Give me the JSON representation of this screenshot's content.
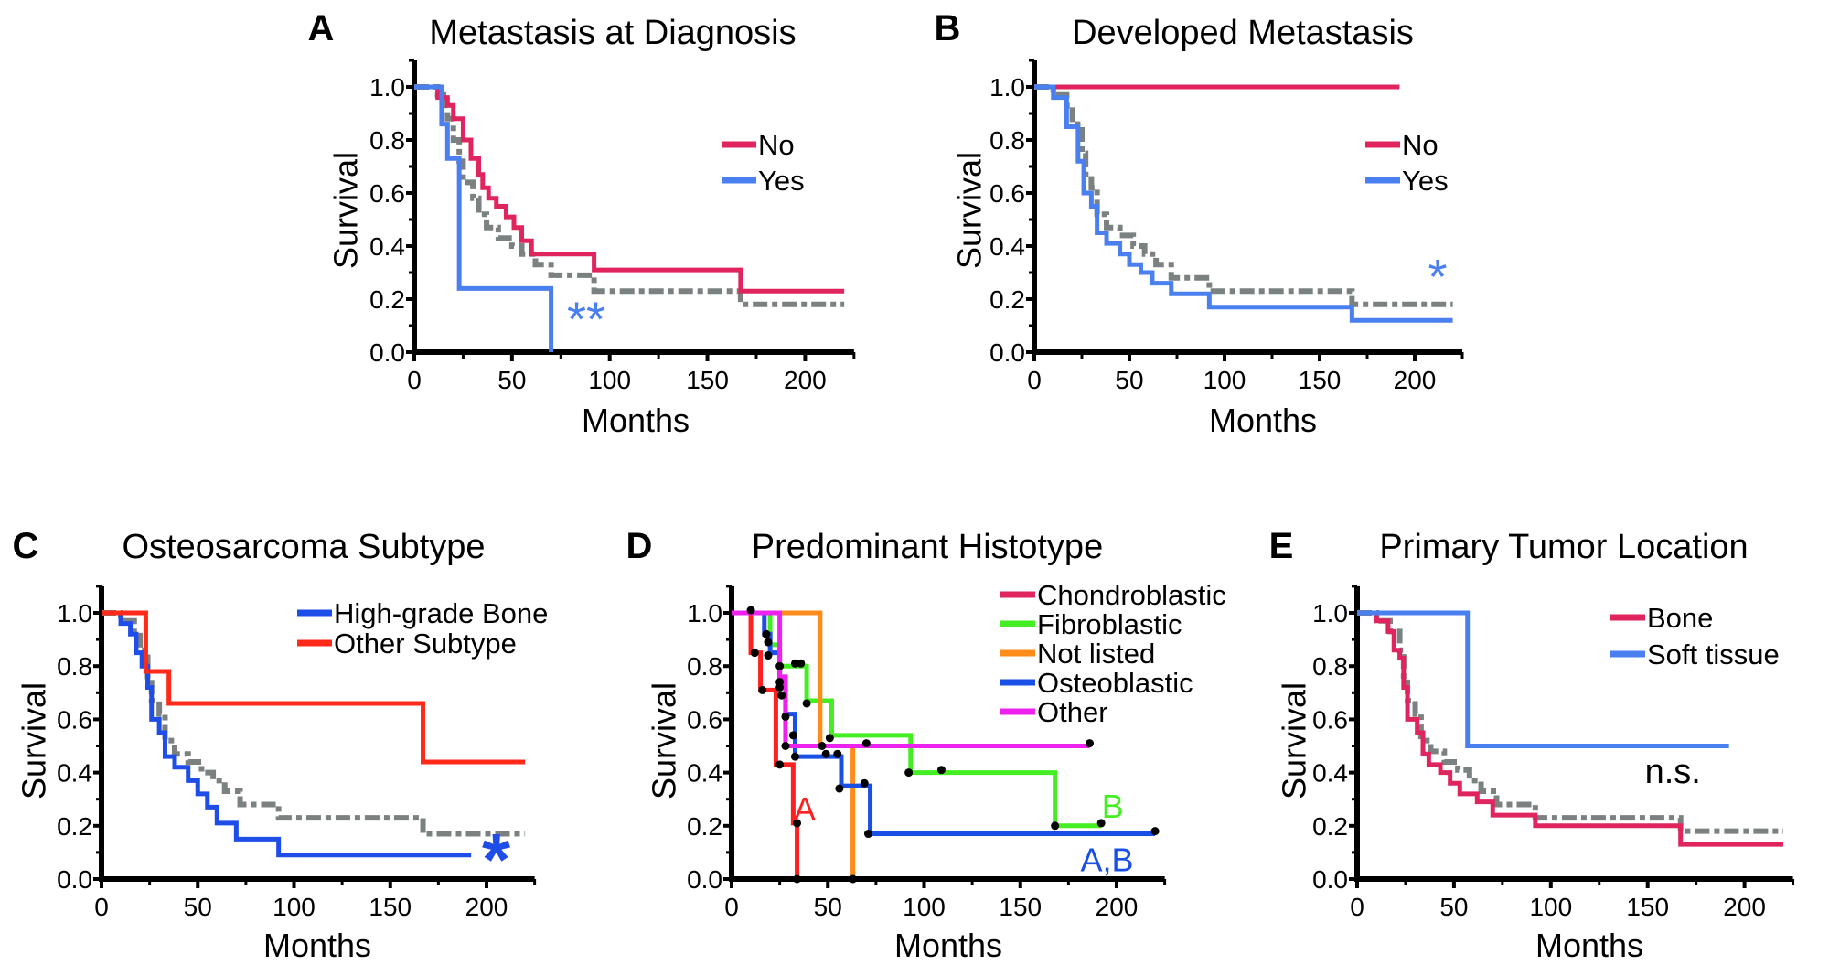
{
  "chart_data": [
    {
      "panel_label": "A",
      "title": "Metastasis at Diagnosis",
      "type": "line",
      "step": true,
      "xlabel": "Months",
      "ylabel": "Survival",
      "xlim": [
        0,
        225
      ],
      "ylim": [
        0,
        1.1
      ],
      "xticks": [
        "0",
        "50",
        "100",
        "150",
        "200"
      ],
      "yticks": [
        "0.0",
        "0.2",
        "0.4",
        "0.6",
        "0.8",
        "1.0"
      ],
      "grid": false,
      "legend": "top-right",
      "series": [
        {
          "name": "No",
          "color": "#e0245e",
          "style": "solid",
          "end": 220,
          "points": [
            [
              0,
              1
            ],
            [
              12,
              0.96
            ],
            [
              17,
              0.93
            ],
            [
              20,
              0.88
            ],
            [
              25,
              0.8
            ],
            [
              29,
              0.73
            ],
            [
              33,
              0.67
            ],
            [
              35,
              0.62
            ],
            [
              38,
              0.58
            ],
            [
              42,
              0.55
            ],
            [
              47,
              0.51
            ],
            [
              51,
              0.47
            ],
            [
              55,
              0.42
            ],
            [
              60,
              0.37
            ],
            [
              92,
              0.31
            ],
            [
              167,
              0.23
            ]
          ]
        },
        {
          "name": "Yes",
          "color": "#4a7ff0",
          "style": "solid",
          "end": 70,
          "points": [
            [
              0,
              1
            ],
            [
              14,
              0.86
            ],
            [
              17,
              0.73
            ],
            [
              23,
              0.24
            ],
            [
              70,
              0
            ]
          ]
        },
        {
          "color": "#7b8080",
          "style": "dashdot",
          "end": 220,
          "points": [
            [
              0,
              1
            ],
            [
              12,
              0.97
            ],
            [
              15,
              0.93
            ],
            [
              17,
              0.88
            ],
            [
              20,
              0.8
            ],
            [
              23,
              0.72
            ],
            [
              25,
              0.64
            ],
            [
              30,
              0.58
            ],
            [
              33,
              0.52
            ],
            [
              37,
              0.47
            ],
            [
              43,
              0.43
            ],
            [
              50,
              0.4
            ],
            [
              55,
              0.37
            ],
            [
              62,
              0.33
            ],
            [
              70,
              0.29
            ],
            [
              92,
              0.23
            ],
            [
              167,
              0.18
            ]
          ]
        }
      ],
      "annotations": [
        {
          "text": "**",
          "color": "#4a7ff0",
          "x": 88,
          "y": 0.06
        }
      ]
    },
    {
      "panel_label": "B",
      "title": "Developed Metastasis",
      "type": "line",
      "step": true,
      "xlabel": "Months",
      "ylabel": "Survival",
      "xlim": [
        0,
        225
      ],
      "ylim": [
        0,
        1.1
      ],
      "xticks": [
        "0",
        "50",
        "100",
        "150",
        "200"
      ],
      "yticks": [
        "0.0",
        "0.2",
        "0.4",
        "0.6",
        "0.8",
        "1.0"
      ],
      "grid": false,
      "legend": "top-right",
      "series": [
        {
          "name": "No",
          "color": "#e0245e",
          "style": "solid",
          "end": 192,
          "points": [
            [
              0,
              1
            ]
          ]
        },
        {
          "name": "Yes",
          "color": "#4a7ff0",
          "style": "solid",
          "end": 220,
          "points": [
            [
              0,
              1
            ],
            [
              10,
              0.96
            ],
            [
              17,
              0.85
            ],
            [
              23,
              0.72
            ],
            [
              26,
              0.6
            ],
            [
              30,
              0.55
            ],
            [
              33,
              0.45
            ],
            [
              38,
              0.41
            ],
            [
              45,
              0.37
            ],
            [
              50,
              0.33
            ],
            [
              56,
              0.3
            ],
            [
              62,
              0.26
            ],
            [
              72,
              0.22
            ],
            [
              92,
              0.17
            ],
            [
              167,
              0.12
            ]
          ]
        },
        {
          "color": "#7b8080",
          "style": "dashdot",
          "end": 220,
          "points": [
            [
              0,
              1
            ],
            [
              10,
              0.97
            ],
            [
              17,
              0.93
            ],
            [
              20,
              0.86
            ],
            [
              25,
              0.75
            ],
            [
              27,
              0.67
            ],
            [
              30,
              0.62
            ],
            [
              33,
              0.52
            ],
            [
              38,
              0.47
            ],
            [
              45,
              0.44
            ],
            [
              52,
              0.4
            ],
            [
              58,
              0.37
            ],
            [
              64,
              0.33
            ],
            [
              72,
              0.28
            ],
            [
              92,
              0.23
            ],
            [
              167,
              0.18
            ]
          ]
        }
      ],
      "annotations": [
        {
          "text": "*",
          "color": "#4a7ff0",
          "x": 212,
          "y": 0.22
        }
      ]
    },
    {
      "panel_label": "C",
      "title": "Osteosarcoma Subtype",
      "type": "line",
      "step": true,
      "xlabel": "Months",
      "ylabel": "Survival",
      "xlim": [
        0,
        225
      ],
      "ylim": [
        0,
        1.1
      ],
      "xticks": [
        "0",
        "50",
        "100",
        "150",
        "200"
      ],
      "yticks": [
        "0.0",
        "0.2",
        "0.4",
        "0.6",
        "0.8",
        "1.0"
      ],
      "grid": false,
      "legend": "top-right",
      "series": [
        {
          "name": "High-grade Bone",
          "color": "#1f4de8",
          "style": "solid",
          "end": 192,
          "points": [
            [
              0,
              1
            ],
            [
              10,
              0.96
            ],
            [
              15,
              0.92
            ],
            [
              18,
              0.85
            ],
            [
              21,
              0.8
            ],
            [
              24,
              0.72
            ],
            [
              26,
              0.6
            ],
            [
              30,
              0.55
            ],
            [
              33,
              0.46
            ],
            [
              38,
              0.42
            ],
            [
              45,
              0.37
            ],
            [
              50,
              0.32
            ],
            [
              55,
              0.27
            ],
            [
              60,
              0.21
            ],
            [
              70,
              0.15
            ],
            [
              92,
              0.09
            ]
          ]
        },
        {
          "name": "Other Subtype",
          "color": "#ff2a1a",
          "style": "solid",
          "end": 220,
          "points": [
            [
              0,
              1
            ],
            [
              23,
              0.78
            ],
            [
              35,
              0.66
            ],
            [
              167,
              0.44
            ]
          ]
        },
        {
          "color": "#7b8080",
          "style": "dashdot",
          "end": 220,
          "points": [
            [
              0,
              1
            ],
            [
              10,
              0.97
            ],
            [
              17,
              0.93
            ],
            [
              20,
              0.86
            ],
            [
              24,
              0.75
            ],
            [
              26,
              0.67
            ],
            [
              30,
              0.62
            ],
            [
              33,
              0.52
            ],
            [
              38,
              0.47
            ],
            [
              45,
              0.44
            ],
            [
              52,
              0.4
            ],
            [
              58,
              0.37
            ],
            [
              64,
              0.33
            ],
            [
              72,
              0.28
            ],
            [
              92,
              0.23
            ],
            [
              167,
              0.17
            ]
          ]
        }
      ],
      "annotations": [
        {
          "text": "*",
          "color": "#1f4de8",
          "x": 205,
          "y": -0.02
        }
      ]
    },
    {
      "panel_label": "D",
      "title": "Predominant Histotype",
      "type": "line",
      "step": true,
      "xlabel": "Months",
      "ylabel": "Survival",
      "xlim": [
        0,
        225
      ],
      "ylim": [
        0,
        1.1
      ],
      "xticks": [
        "0",
        "50",
        "100",
        "150",
        "200"
      ],
      "yticks": [
        "0.0",
        "0.2",
        "0.4",
        "0.6",
        "0.8",
        "1.0"
      ],
      "grid": false,
      "legend": "top-right",
      "series": [
        {
          "name": "Chondroblastic",
          "color": "#ff2020",
          "legend_color": "#e0245e",
          "style": "solid",
          "end": 34,
          "points": [
            [
              0,
              1
            ],
            [
              10,
              0.85
            ],
            [
              15,
              0.71
            ],
            [
              23,
              0.43
            ],
            [
              32,
              0.21
            ],
            [
              34,
              0
            ]
          ]
        },
        {
          "name": "Fibroblastic",
          "color": "#44ee22",
          "style": "solid",
          "end": 192,
          "points": [
            [
              0,
              1
            ],
            [
              20,
              0.88
            ],
            [
              25,
              0.8
            ],
            [
              39,
              0.67
            ],
            [
              52,
              0.54
            ],
            [
              93,
              0.4
            ],
            [
              168,
              0.2
            ]
          ]
        },
        {
          "name": "Not listed",
          "color": "#ff8c1a",
          "style": "solid",
          "end": 63,
          "points": [
            [
              0,
              1
            ],
            [
              46,
              0.5
            ],
            [
              63,
              0
            ]
          ]
        },
        {
          "name": "Osteoblastic",
          "color": "#1a4fe6",
          "style": "solid",
          "end": 220,
          "points": [
            [
              0,
              1
            ],
            [
              17,
              0.92
            ],
            [
              20,
              0.85
            ],
            [
              25,
              0.75
            ],
            [
              28,
              0.62
            ],
            [
              33,
              0.46
            ],
            [
              57,
              0.35
            ],
            [
              72,
              0.17
            ]
          ]
        },
        {
          "name": "Other",
          "color": "#ee22ee",
          "style": "solid",
          "end": 186,
          "points": [
            [
              0,
              1
            ],
            [
              25,
              0.76
            ],
            [
              28,
              0.5
            ]
          ]
        }
      ],
      "censored": [
        [
          10,
          1.01
        ],
        [
          12,
          0.85
        ],
        [
          16,
          0.71
        ],
        [
          18,
          0.92
        ],
        [
          19,
          0.89
        ],
        [
          19,
          0.84
        ],
        [
          25,
          0.8
        ],
        [
          25,
          0.74
        ],
        [
          25,
          0.72
        ],
        [
          26,
          0.69
        ],
        [
          28,
          0.61
        ],
        [
          32,
          0.54
        ],
        [
          28,
          0.5
        ],
        [
          33,
          0.46
        ],
        [
          25,
          0.43
        ],
        [
          34,
          0.21
        ],
        [
          33,
          0.81
        ],
        [
          36,
          0.81
        ],
        [
          39,
          0.66
        ],
        [
          51,
          0.53
        ],
        [
          47,
          0.5
        ],
        [
          49,
          0.47
        ],
        [
          55,
          0.47
        ],
        [
          56,
          0.34
        ],
        [
          69,
          0.36
        ],
        [
          71,
          0.17
        ],
        [
          70,
          0.51
        ],
        [
          92,
          0.4
        ],
        [
          109,
          0.41
        ],
        [
          168,
          0.2
        ],
        [
          192,
          0.21
        ],
        [
          186,
          0.51
        ],
        [
          220,
          0.18
        ],
        [
          34,
          0
        ],
        [
          63,
          0
        ]
      ],
      "annotations": [
        {
          "text": "A",
          "color": "#ff2020",
          "x": 38,
          "y": 0.22
        },
        {
          "text": "B",
          "color": "#44ee22",
          "x": 198,
          "y": 0.23
        },
        {
          "text": "A,B",
          "color": "#1a4fe6",
          "x": 195,
          "y": 0.03
        }
      ]
    },
    {
      "panel_label": "E",
      "title": "Primary Tumor Location",
      "type": "line",
      "step": true,
      "xlabel": "Months",
      "ylabel": "Survival",
      "xlim": [
        0,
        225
      ],
      "ylim": [
        0,
        1.1
      ],
      "xticks": [
        "0",
        "50",
        "100",
        "150",
        "200"
      ],
      "yticks": [
        "0.0",
        "0.2",
        "0.4",
        "0.6",
        "0.8",
        "1.0"
      ],
      "grid": false,
      "legend": "top-right",
      "series": [
        {
          "name": "Bone",
          "color": "#e0245e",
          "style": "solid",
          "end": 220,
          "points": [
            [
              0,
              1
            ],
            [
              10,
              0.97
            ],
            [
              16,
              0.93
            ],
            [
              19,
              0.86
            ],
            [
              22,
              0.83
            ],
            [
              24,
              0.72
            ],
            [
              26,
              0.6
            ],
            [
              31,
              0.55
            ],
            [
              34,
              0.47
            ],
            [
              37,
              0.43
            ],
            [
              43,
              0.4
            ],
            [
              48,
              0.36
            ],
            [
              53,
              0.32
            ],
            [
              62,
              0.29
            ],
            [
              70,
              0.24
            ],
            [
              92,
              0.2
            ],
            [
              167,
              0.13
            ]
          ]
        },
        {
          "name": "Soft tissue",
          "color": "#4a7ff0",
          "style": "solid",
          "end": 192,
          "points": [
            [
              0,
              1
            ],
            [
              57,
              0.5
            ]
          ]
        },
        {
          "color": "#7b8080",
          "style": "dashdot",
          "end": 220,
          "points": [
            [
              0,
              1
            ],
            [
              10,
              0.97
            ],
            [
              17,
              0.93
            ],
            [
              22,
              0.86
            ],
            [
              24,
              0.75
            ],
            [
              26,
              0.67
            ],
            [
              30,
              0.62
            ],
            [
              33,
              0.52
            ],
            [
              38,
              0.48
            ],
            [
              45,
              0.44
            ],
            [
              52,
              0.41
            ],
            [
              58,
              0.37
            ],
            [
              64,
              0.33
            ],
            [
              72,
              0.28
            ],
            [
              92,
              0.23
            ],
            [
              167,
              0.18
            ]
          ]
        }
      ],
      "annotations": [
        {
          "text": "n.s.",
          "color": "#000000",
          "x": 163,
          "y": 0.36
        }
      ]
    }
  ]
}
